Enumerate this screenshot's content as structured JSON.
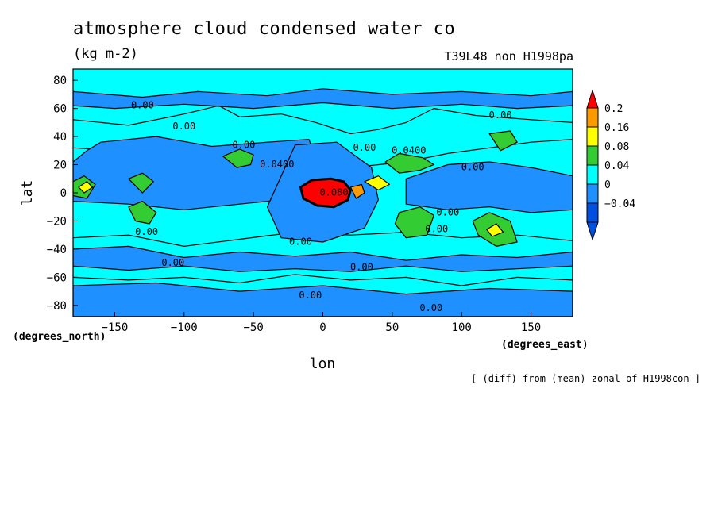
{
  "title": "atmosphere cloud condensed water co",
  "units": "(kg m-2)",
  "run_label": "T39L48_non_H1998pa",
  "footnote": "[ (diff) from (mean) zonal of H1998con ]",
  "chart_data": {
    "type": "heatmap",
    "subtype": "filled-contour-map",
    "xlabel": "lon",
    "ylabel": "lat",
    "xunit_label": "(degrees_east)",
    "yunit_label": "(degrees_north)",
    "xlim": [
      -180,
      180
    ],
    "ylim": [
      -88,
      88
    ],
    "xticks": [
      -150,
      -100,
      -50,
      0,
      50,
      100,
      150
    ],
    "yticks": [
      80,
      60,
      40,
      20,
      0,
      -20,
      -40,
      -60,
      -80
    ],
    "colorbar": {
      "levels": [
        "0.2",
        "0.16",
        "0.08",
        "0.04",
        "0",
        "-0.04"
      ],
      "colors": [
        "#ff0000",
        "#ff9900",
        "#ffff00",
        "#33cc33",
        "#00ffff",
        "#1e90ff",
        "#0050e0"
      ]
    },
    "contour_labels": [
      {
        "text": "0.00",
        "lon": -130,
        "lat": 60
      },
      {
        "text": "0.00",
        "lon": -100,
        "lat": 45
      },
      {
        "text": "0.00",
        "lon": -57,
        "lat": 32
      },
      {
        "text": "0.0400",
        "lon": -33,
        "lat": 18
      },
      {
        "text": "0.080",
        "lon": 8,
        "lat": -2
      },
      {
        "text": "0.00",
        "lon": 30,
        "lat": 30
      },
      {
        "text": "0.0400",
        "lon": 62,
        "lat": 28
      },
      {
        "text": "0.00",
        "lon": 108,
        "lat": 16
      },
      {
        "text": "0.00",
        "lon": 128,
        "lat": 53
      },
      {
        "text": "0.00",
        "lon": 90,
        "lat": -16
      },
      {
        "text": "0.00",
        "lon": 82,
        "lat": -28
      },
      {
        "text": "0.00",
        "lon": -127,
        "lat": -30
      },
      {
        "text": "0.00",
        "lon": -16,
        "lat": -37
      },
      {
        "text": "0.00",
        "lon": 28,
        "lat": -55
      },
      {
        "text": "0.00",
        "lon": -108,
        "lat": -52
      },
      {
        "text": "0.00",
        "lon": -9,
        "lat": -75
      },
      {
        "text": "0.00",
        "lon": 78,
        "lat": -84
      }
    ],
    "features": [
      {
        "level": "0",
        "lonlat": [
          [
            -180,
            52
          ],
          [
            -140,
            48
          ],
          [
            -100,
            56
          ],
          [
            -75,
            62
          ],
          [
            -60,
            54
          ],
          [
            -30,
            56
          ],
          [
            -5,
            50
          ],
          [
            20,
            42
          ],
          [
            40,
            45
          ],
          [
            60,
            50
          ],
          [
            80,
            60
          ],
          [
            110,
            55
          ],
          [
            150,
            52
          ],
          [
            180,
            50
          ],
          [
            180,
            38
          ],
          [
            150,
            36
          ],
          [
            120,
            32
          ],
          [
            90,
            28
          ],
          [
            60,
            22
          ],
          [
            20,
            18
          ],
          [
            -20,
            25
          ],
          [
            -60,
            28
          ],
          [
            -100,
            26
          ],
          [
            -140,
            30
          ],
          [
            -180,
            32
          ]
        ]
      },
      {
        "level": "0",
        "lonlat": [
          [
            -180,
            -32
          ],
          [
            -140,
            -30
          ],
          [
            -100,
            -38
          ],
          [
            -60,
            -33
          ],
          [
            -20,
            -28
          ],
          [
            20,
            -30
          ],
          [
            60,
            -28
          ],
          [
            100,
            -32
          ],
          [
            140,
            -30
          ],
          [
            180,
            -34
          ],
          [
            180,
            -62
          ],
          [
            140,
            -60
          ],
          [
            100,
            -66
          ],
          [
            60,
            -60
          ],
          [
            20,
            -62
          ],
          [
            -20,
            -58
          ],
          [
            -60,
            -64
          ],
          [
            -100,
            -60
          ],
          [
            -140,
            -62
          ],
          [
            -180,
            -60
          ]
        ]
      },
      {
        "level": "-0.04",
        "lonlat": [
          [
            -160,
            36
          ],
          [
            -120,
            40
          ],
          [
            -80,
            33
          ],
          [
            -40,
            36
          ],
          [
            -10,
            38
          ],
          [
            0,
            10
          ],
          [
            -20,
            -4
          ],
          [
            -60,
            -8
          ],
          [
            -100,
            -12
          ],
          [
            -140,
            -8
          ],
          [
            -180,
            -6
          ],
          [
            -180,
            22
          ],
          [
            -170,
            30
          ]
        ]
      },
      {
        "level": "-0.04",
        "lonlat": [
          [
            -20,
            34
          ],
          [
            10,
            36
          ],
          [
            35,
            18
          ],
          [
            40,
            -5
          ],
          [
            30,
            -25
          ],
          [
            0,
            -35
          ],
          [
            -30,
            -32
          ],
          [
            -40,
            -10
          ]
        ]
      },
      {
        "level": "-0.04",
        "lonlat": [
          [
            60,
            10
          ],
          [
            90,
            20
          ],
          [
            120,
            22
          ],
          [
            150,
            18
          ],
          [
            180,
            12
          ],
          [
            180,
            -12
          ],
          [
            150,
            -14
          ],
          [
            120,
            -10
          ],
          [
            90,
            -12
          ],
          [
            60,
            -8
          ]
        ]
      },
      {
        "level": "-0.04",
        "lonlat": [
          [
            -180,
            -40
          ],
          [
            -140,
            -38
          ],
          [
            -100,
            -46
          ],
          [
            -60,
            -42
          ],
          [
            -20,
            -45
          ],
          [
            20,
            -42
          ],
          [
            60,
            -48
          ],
          [
            100,
            -44
          ],
          [
            140,
            -46
          ],
          [
            180,
            -42
          ],
          [
            180,
            -52
          ],
          [
            140,
            -54
          ],
          [
            100,
            -56
          ],
          [
            60,
            -52
          ],
          [
            20,
            -56
          ],
          [
            -20,
            -54
          ],
          [
            -60,
            -56
          ],
          [
            -100,
            -52
          ],
          [
            -140,
            -55
          ],
          [
            -180,
            -52
          ]
        ]
      },
      {
        "level": "-0.04",
        "lonlat": [
          [
            -180,
            -66
          ],
          [
            -120,
            -64
          ],
          [
            -60,
            -70
          ],
          [
            0,
            -66
          ],
          [
            60,
            -72
          ],
          [
            120,
            -68
          ],
          [
            180,
            -70
          ],
          [
            180,
            -88
          ],
          [
            -180,
            -88
          ]
        ]
      },
      {
        "level": "-0.04",
        "lonlat": [
          [
            -180,
            72
          ],
          [
            -130,
            68
          ],
          [
            -90,
            72
          ],
          [
            -40,
            69
          ],
          [
            0,
            74
          ],
          [
            50,
            70
          ],
          [
            100,
            72
          ],
          [
            150,
            69
          ],
          [
            180,
            72
          ],
          [
            180,
            62
          ],
          [
            140,
            60
          ],
          [
            100,
            63
          ],
          [
            50,
            60
          ],
          [
            0,
            64
          ],
          [
            -50,
            60
          ],
          [
            -100,
            63
          ],
          [
            -150,
            60
          ],
          [
            -180,
            62
          ]
        ]
      },
      {
        "level": "0.04",
        "lonlat": [
          [
            -72,
            26
          ],
          [
            -62,
            18
          ],
          [
            -52,
            20
          ],
          [
            -50,
            27
          ],
          [
            -60,
            31
          ]
        ]
      },
      {
        "level": "0.04",
        "lonlat": [
          [
            45,
            22
          ],
          [
            55,
            28
          ],
          [
            72,
            25
          ],
          [
            80,
            20
          ],
          [
            70,
            16
          ],
          [
            55,
            14
          ]
        ]
      },
      {
        "level": "0.04",
        "lonlat": [
          [
            -140,
            -10
          ],
          [
            -130,
            -6
          ],
          [
            -120,
            -14
          ],
          [
            -125,
            -22
          ],
          [
            -135,
            -20
          ]
        ]
      },
      {
        "level": "0.04",
        "lonlat": [
          [
            55,
            -14
          ],
          [
            70,
            -10
          ],
          [
            80,
            -16
          ],
          [
            75,
            -30
          ],
          [
            60,
            -32
          ],
          [
            52,
            -22
          ]
        ]
      },
      {
        "level": "0.04",
        "lonlat": [
          [
            108,
            -20
          ],
          [
            120,
            -14
          ],
          [
            135,
            -20
          ],
          [
            140,
            -35
          ],
          [
            125,
            -38
          ],
          [
            112,
            -30
          ]
        ]
      },
      {
        "level": "0.04",
        "lonlat": [
          [
            120,
            42
          ],
          [
            135,
            44
          ],
          [
            140,
            36
          ],
          [
            128,
            30
          ]
        ]
      },
      {
        "level": "0.04",
        "lonlat": [
          [
            -180,
            8
          ],
          [
            -172,
            12
          ],
          [
            -164,
            6
          ],
          [
            -170,
            -4
          ],
          [
            -180,
            -2
          ]
        ]
      },
      {
        "level": "0.04",
        "lonlat": [
          [
            -140,
            10
          ],
          [
            -130,
            14
          ],
          [
            -122,
            8
          ],
          [
            -130,
            0
          ]
        ]
      },
      {
        "level": "0.08",
        "lonlat": [
          [
            -176,
            4
          ],
          [
            -170,
            8
          ],
          [
            -166,
            4
          ],
          [
            -172,
            0
          ]
        ]
      },
      {
        "level": "0.08",
        "lonlat": [
          [
            30,
            8
          ],
          [
            40,
            12
          ],
          [
            48,
            6
          ],
          [
            40,
            2
          ]
        ]
      },
      {
        "level": "0.08",
        "lonlat": [
          [
            118,
            -26
          ],
          [
            125,
            -22
          ],
          [
            130,
            -28
          ],
          [
            122,
            -31
          ]
        ]
      },
      {
        "level": "0.2",
        "lonlat": [
          [
            -16,
            4
          ],
          [
            -8,
            9
          ],
          [
            6,
            10
          ],
          [
            15,
            8
          ],
          [
            20,
            2
          ],
          [
            18,
            -5
          ],
          [
            8,
            -10
          ],
          [
            -4,
            -9
          ],
          [
            -14,
            -4
          ]
        ]
      },
      {
        "level": "0.16",
        "lonlat": [
          [
            20,
            4
          ],
          [
            28,
            6
          ],
          [
            30,
            0
          ],
          [
            24,
            -4
          ]
        ]
      }
    ]
  }
}
